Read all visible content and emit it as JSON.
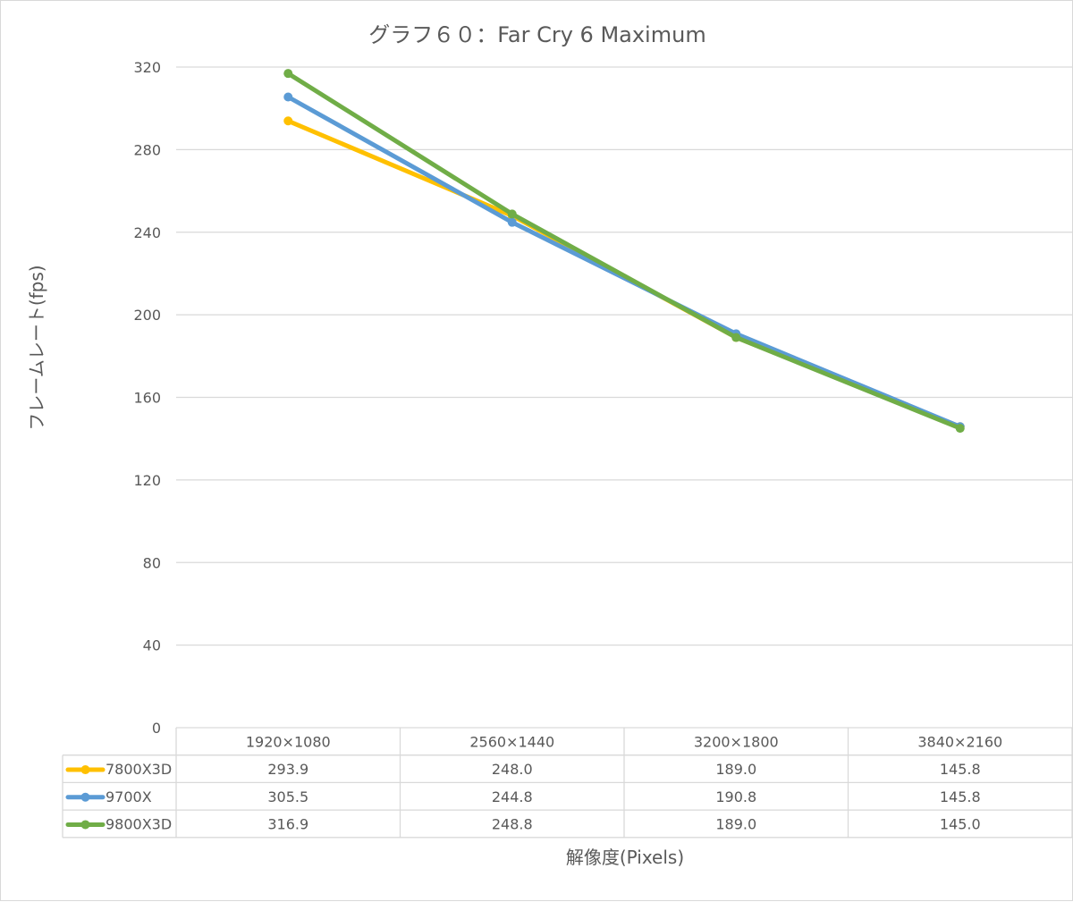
{
  "chart_data": {
    "type": "line",
    "title": "グラフ６０：Far Cry 6 Maximum",
    "xlabel": "解像度(Pixels)",
    "ylabel": "フレームレート(fps)",
    "ylim": [
      0,
      320
    ],
    "yticks": [
      0,
      40,
      80,
      120,
      160,
      200,
      240,
      280,
      320
    ],
    "categories": [
      "1920×1080",
      "2560×1440",
      "3200×1800",
      "3840×2160"
    ],
    "grid": true,
    "legend": "data-table",
    "series": [
      {
        "name": "7800X3D",
        "color": "#FFC000",
        "values": [
          293.9,
          248.0,
          189.0,
          145.8
        ],
        "labels": [
          "293.9",
          "248.0",
          "189.0",
          "145.8"
        ]
      },
      {
        "name": "9700X",
        "color": "#5B9BD5",
        "values": [
          305.5,
          244.8,
          190.8,
          145.8
        ],
        "labels": [
          "305.5",
          "244.8",
          "190.8",
          "145.8"
        ]
      },
      {
        "name": "9800X3D",
        "color": "#70AD47",
        "values": [
          316.9,
          248.8,
          189.0,
          145.0
        ],
        "labels": [
          "316.9",
          "248.8",
          "189.0",
          "145.0"
        ]
      }
    ]
  }
}
